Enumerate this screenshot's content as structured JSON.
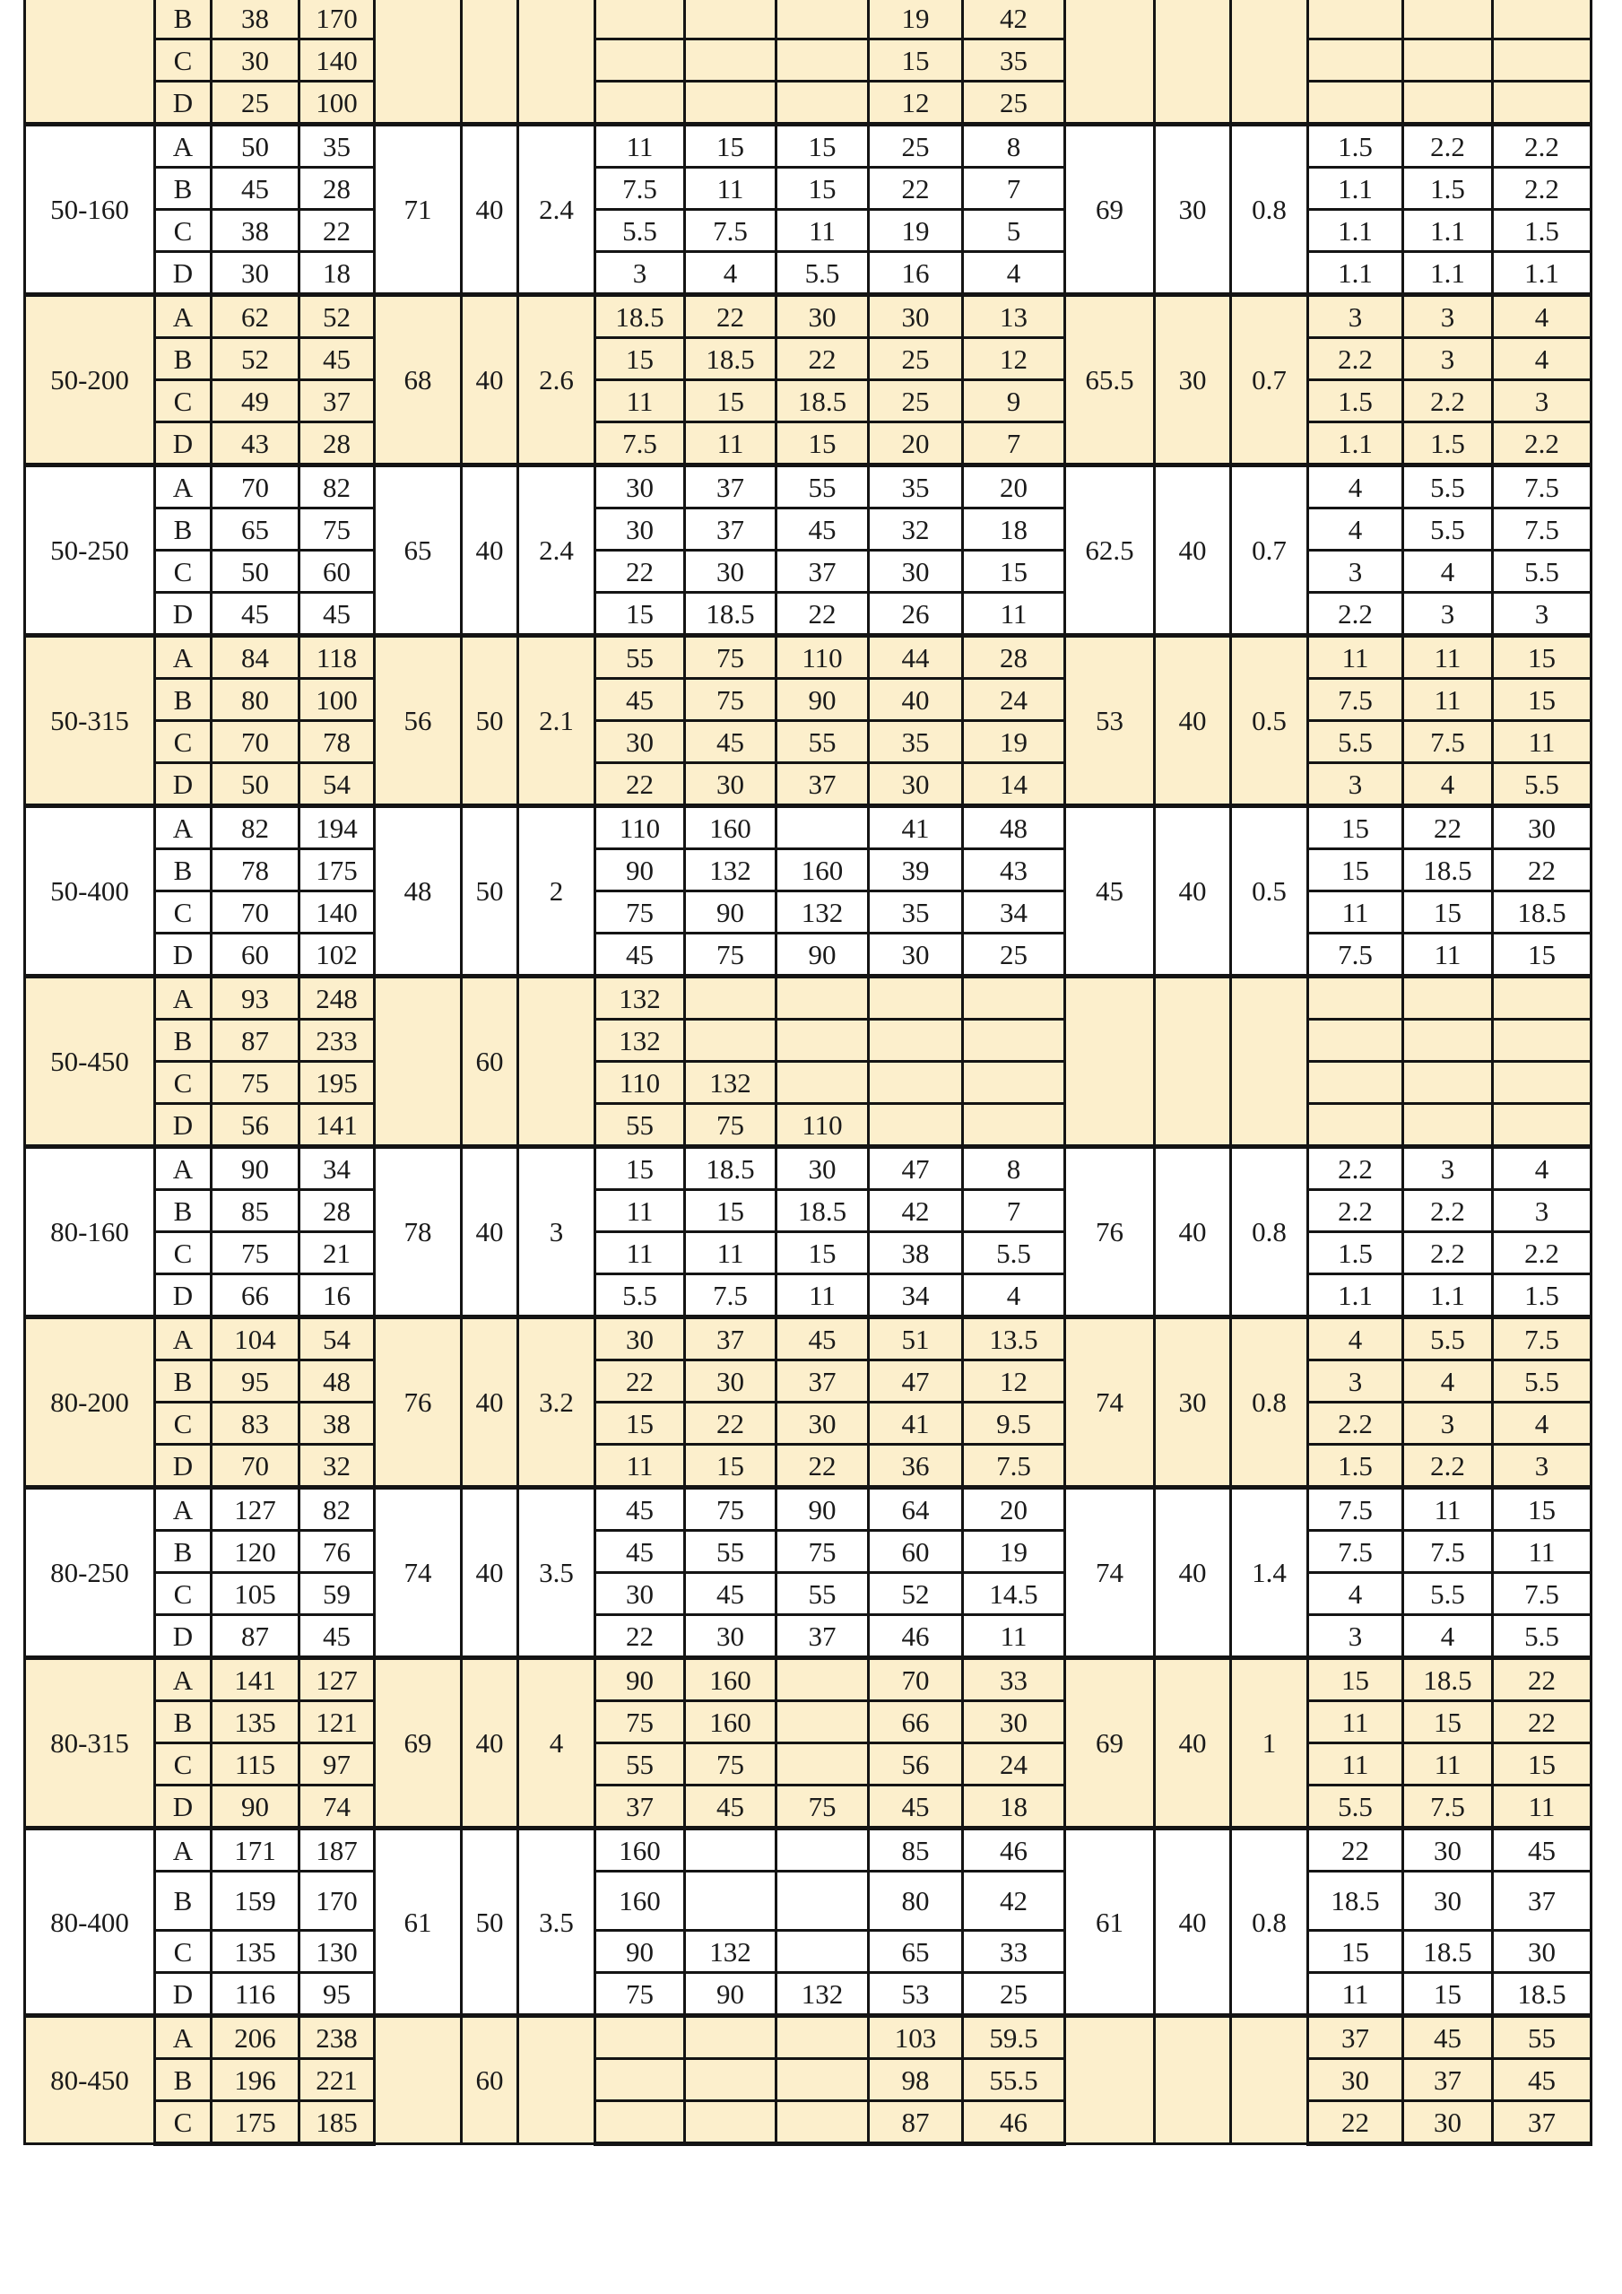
{
  "colors": {
    "shaded_row": "#fcefcc",
    "plain_row": "#ffffff",
    "grid": "#141414"
  },
  "groups": [
    {
      "model": "",
      "shaded": true,
      "merged_left": [
        "",
        "",
        ""
      ],
      "merged_right": [
        "",
        "",
        ""
      ],
      "rows": [
        {
          "variant": "B",
          "v1": "38",
          "v2": "170",
          "mid": [
            "",
            "",
            "",
            "19",
            "42"
          ],
          "right": [
            "",
            "",
            ""
          ]
        },
        {
          "variant": "C",
          "v1": "30",
          "v2": "140",
          "mid": [
            "",
            "",
            "",
            "15",
            "35"
          ],
          "right": [
            "",
            "",
            ""
          ]
        },
        {
          "variant": "D",
          "v1": "25",
          "v2": "100",
          "mid": [
            "",
            "",
            "",
            "12",
            "25"
          ],
          "right": [
            "",
            "",
            ""
          ]
        }
      ]
    },
    {
      "model": "50-160",
      "shaded": false,
      "merged_left": [
        "71",
        "40",
        "2.4"
      ],
      "merged_right": [
        "69",
        "30",
        "0.8"
      ],
      "rows": [
        {
          "variant": "A",
          "v1": "50",
          "v2": "35",
          "mid": [
            "11",
            "15",
            "15",
            "25",
            "8"
          ],
          "right": [
            "1.5",
            "2.2",
            "2.2"
          ]
        },
        {
          "variant": "B",
          "v1": "45",
          "v2": "28",
          "mid": [
            "7.5",
            "11",
            "15",
            "22",
            "7"
          ],
          "right": [
            "1.1",
            "1.5",
            "2.2"
          ]
        },
        {
          "variant": "C",
          "v1": "38",
          "v2": "22",
          "mid": [
            "5.5",
            "7.5",
            "11",
            "19",
            "5"
          ],
          "right": [
            "1.1",
            "1.1",
            "1.5"
          ]
        },
        {
          "variant": "D",
          "v1": "30",
          "v2": "18",
          "mid": [
            "3",
            "4",
            "5.5",
            "16",
            "4"
          ],
          "right": [
            "1.1",
            "1.1",
            "1.1"
          ]
        }
      ]
    },
    {
      "model": "50-200",
      "shaded": true,
      "merged_left": [
        "68",
        "40",
        "2.6"
      ],
      "merged_right": [
        "65.5",
        "30",
        "0.7"
      ],
      "rows": [
        {
          "variant": "A",
          "v1": "62",
          "v2": "52",
          "mid": [
            "18.5",
            "22",
            "30",
            "30",
            "13"
          ],
          "right": [
            "3",
            "3",
            "4"
          ]
        },
        {
          "variant": "B",
          "v1": "52",
          "v2": "45",
          "mid": [
            "15",
            "18.5",
            "22",
            "25",
            "12"
          ],
          "right": [
            "2.2",
            "3",
            "4"
          ]
        },
        {
          "variant": "C",
          "v1": "49",
          "v2": "37",
          "mid": [
            "11",
            "15",
            "18.5",
            "25",
            "9"
          ],
          "right": [
            "1.5",
            "2.2",
            "3"
          ]
        },
        {
          "variant": "D",
          "v1": "43",
          "v2": "28",
          "mid": [
            "7.5",
            "11",
            "15",
            "20",
            "7"
          ],
          "right": [
            "1.1",
            "1.5",
            "2.2"
          ]
        }
      ]
    },
    {
      "model": "50-250",
      "shaded": false,
      "merged_left": [
        "65",
        "40",
        "2.4"
      ],
      "merged_right": [
        "62.5",
        "40",
        "0.7"
      ],
      "rows": [
        {
          "variant": "A",
          "v1": "70",
          "v2": "82",
          "mid": [
            "30",
            "37",
            "55",
            "35",
            "20"
          ],
          "right": [
            "4",
            "5.5",
            "7.5"
          ]
        },
        {
          "variant": "B",
          "v1": "65",
          "v2": "75",
          "mid": [
            "30",
            "37",
            "45",
            "32",
            "18"
          ],
          "right": [
            "4",
            "5.5",
            "7.5"
          ]
        },
        {
          "variant": "C",
          "v1": "50",
          "v2": "60",
          "mid": [
            "22",
            "30",
            "37",
            "30",
            "15"
          ],
          "right": [
            "3",
            "4",
            "5.5"
          ]
        },
        {
          "variant": "D",
          "v1": "45",
          "v2": "45",
          "mid": [
            "15",
            "18.5",
            "22",
            "26",
            "11"
          ],
          "right": [
            "2.2",
            "3",
            "3"
          ]
        }
      ]
    },
    {
      "model": "50-315",
      "shaded": true,
      "merged_left": [
        "56",
        "50",
        "2.1"
      ],
      "merged_right": [
        "53",
        "40",
        "0.5"
      ],
      "rows": [
        {
          "variant": "A",
          "v1": "84",
          "v2": "118",
          "mid": [
            "55",
            "75",
            "110",
            "44",
            "28"
          ],
          "right": [
            "11",
            "11",
            "15"
          ]
        },
        {
          "variant": "B",
          "v1": "80",
          "v2": "100",
          "mid": [
            "45",
            "75",
            "90",
            "40",
            "24"
          ],
          "right": [
            "7.5",
            "11",
            "15"
          ]
        },
        {
          "variant": "C",
          "v1": "70",
          "v2": "78",
          "mid": [
            "30",
            "45",
            "55",
            "35",
            "19"
          ],
          "right": [
            "5.5",
            "7.5",
            "11"
          ]
        },
        {
          "variant": "D",
          "v1": "50",
          "v2": "54",
          "mid": [
            "22",
            "30",
            "37",
            "30",
            "14"
          ],
          "right": [
            "3",
            "4",
            "5.5"
          ]
        }
      ]
    },
    {
      "model": "50-400",
      "shaded": false,
      "merged_left": [
        "48",
        "50",
        "2"
      ],
      "merged_right": [
        "45",
        "40",
        "0.5"
      ],
      "rows": [
        {
          "variant": "A",
          "v1": "82",
          "v2": "194",
          "mid": [
            "110",
            "160",
            "",
            "41",
            "48"
          ],
          "right": [
            "15",
            "22",
            "30"
          ]
        },
        {
          "variant": "B",
          "v1": "78",
          "v2": "175",
          "mid": [
            "90",
            "132",
            "160",
            "39",
            "43"
          ],
          "right": [
            "15",
            "18.5",
            "22"
          ]
        },
        {
          "variant": "C",
          "v1": "70",
          "v2": "140",
          "mid": [
            "75",
            "90",
            "132",
            "35",
            "34"
          ],
          "right": [
            "11",
            "15",
            "18.5"
          ]
        },
        {
          "variant": "D",
          "v1": "60",
          "v2": "102",
          "mid": [
            "45",
            "75",
            "90",
            "30",
            "25"
          ],
          "right": [
            "7.5",
            "11",
            "15"
          ]
        }
      ]
    },
    {
      "model": "50-450",
      "shaded": true,
      "merged_left": [
        "",
        "60",
        ""
      ],
      "merged_right": [
        "",
        "",
        ""
      ],
      "rows": [
        {
          "variant": "A",
          "v1": "93",
          "v2": "248",
          "mid": [
            "132",
            "",
            "",
            "",
            ""
          ],
          "right": [
            "",
            "",
            ""
          ]
        },
        {
          "variant": "B",
          "v1": "87",
          "v2": "233",
          "mid": [
            "132",
            "",
            "",
            "",
            ""
          ],
          "right": [
            "",
            "",
            ""
          ]
        },
        {
          "variant": "C",
          "v1": "75",
          "v2": "195",
          "mid": [
            "110",
            "132",
            "",
            "",
            ""
          ],
          "right": [
            "",
            "",
            ""
          ]
        },
        {
          "variant": "D",
          "v1": "56",
          "v2": "141",
          "mid": [
            "55",
            "75",
            "110",
            "",
            ""
          ],
          "right": [
            "",
            "",
            ""
          ]
        }
      ]
    },
    {
      "model": "80-160",
      "shaded": false,
      "merged_left": [
        "78",
        "40",
        "3"
      ],
      "merged_right": [
        "76",
        "40",
        "0.8"
      ],
      "rows": [
        {
          "variant": "A",
          "v1": "90",
          "v2": "34",
          "mid": [
            "15",
            "18.5",
            "30",
            "47",
            "8"
          ],
          "right": [
            "2.2",
            "3",
            "4"
          ]
        },
        {
          "variant": "B",
          "v1": "85",
          "v2": "28",
          "mid": [
            "11",
            "15",
            "18.5",
            "42",
            "7"
          ],
          "right": [
            "2.2",
            "2.2",
            "3"
          ]
        },
        {
          "variant": "C",
          "v1": "75",
          "v2": "21",
          "mid": [
            "11",
            "11",
            "15",
            "38",
            "5.5"
          ],
          "right": [
            "1.5",
            "2.2",
            "2.2"
          ]
        },
        {
          "variant": "D",
          "v1": "66",
          "v2": "16",
          "mid": [
            "5.5",
            "7.5",
            "11",
            "34",
            "4"
          ],
          "right": [
            "1.1",
            "1.1",
            "1.5"
          ]
        }
      ]
    },
    {
      "model": "80-200",
      "shaded": true,
      "merged_left": [
        "76",
        "40",
        "3.2"
      ],
      "merged_right": [
        "74",
        "30",
        "0.8"
      ],
      "rows": [
        {
          "variant": "A",
          "v1": "104",
          "v2": "54",
          "mid": [
            "30",
            "37",
            "45",
            "51",
            "13.5"
          ],
          "right": [
            "4",
            "5.5",
            "7.5"
          ]
        },
        {
          "variant": "B",
          "v1": "95",
          "v2": "48",
          "mid": [
            "22",
            "30",
            "37",
            "47",
            "12"
          ],
          "right": [
            "3",
            "4",
            "5.5"
          ]
        },
        {
          "variant": "C",
          "v1": "83",
          "v2": "38",
          "mid": [
            "15",
            "22",
            "30",
            "41",
            "9.5"
          ],
          "right": [
            "2.2",
            "3",
            "4"
          ]
        },
        {
          "variant": "D",
          "v1": "70",
          "v2": "32",
          "mid": [
            "11",
            "15",
            "22",
            "36",
            "7.5"
          ],
          "right": [
            "1.5",
            "2.2",
            "3"
          ]
        }
      ]
    },
    {
      "model": "80-250",
      "shaded": false,
      "merged_left": [
        "74",
        "40",
        "3.5"
      ],
      "merged_right": [
        "74",
        "40",
        "1.4"
      ],
      "rows": [
        {
          "variant": "A",
          "v1": "127",
          "v2": "82",
          "mid": [
            "45",
            "75",
            "90",
            "64",
            "20"
          ],
          "right": [
            "7.5",
            "11",
            "15"
          ]
        },
        {
          "variant": "B",
          "v1": "120",
          "v2": "76",
          "mid": [
            "45",
            "55",
            "75",
            "60",
            "19"
          ],
          "right": [
            "7.5",
            "7.5",
            "11"
          ]
        },
        {
          "variant": "C",
          "v1": "105",
          "v2": "59",
          "mid": [
            "30",
            "45",
            "55",
            "52",
            "14.5"
          ],
          "right": [
            "4",
            "5.5",
            "7.5"
          ]
        },
        {
          "variant": "D",
          "v1": "87",
          "v2": "45",
          "mid": [
            "22",
            "30",
            "37",
            "46",
            "11"
          ],
          "right": [
            "3",
            "4",
            "5.5"
          ]
        }
      ]
    },
    {
      "model": "80-315",
      "shaded": true,
      "merged_left": [
        "69",
        "40",
        "4"
      ],
      "merged_right": [
        "69",
        "40",
        "1"
      ],
      "rows": [
        {
          "variant": "A",
          "v1": "141",
          "v2": "127",
          "mid": [
            "90",
            "160",
            "",
            "70",
            "33"
          ],
          "right": [
            "15",
            "18.5",
            "22"
          ]
        },
        {
          "variant": "B",
          "v1": "135",
          "v2": "121",
          "mid": [
            "75",
            "160",
            "",
            "66",
            "30"
          ],
          "right": [
            "11",
            "15",
            "22"
          ]
        },
        {
          "variant": "C",
          "v1": "115",
          "v2": "97",
          "mid": [
            "55",
            "75",
            "",
            "56",
            "24"
          ],
          "right": [
            "11",
            "11",
            "15"
          ]
        },
        {
          "variant": "D",
          "v1": "90",
          "v2": "74",
          "mid": [
            "37",
            "45",
            "75",
            "45",
            "18"
          ],
          "right": [
            "5.5",
            "7.5",
            "11"
          ]
        }
      ]
    },
    {
      "model": "80-400",
      "shaded": false,
      "merged_left": [
        "61",
        "50",
        "3.5"
      ],
      "merged_right": [
        "61",
        "40",
        "0.8"
      ],
      "rows": [
        {
          "variant": "A",
          "v1": "171",
          "v2": "187",
          "mid": [
            "160",
            "",
            "",
            "85",
            "46"
          ],
          "right": [
            "22",
            "30",
            "45"
          ]
        },
        {
          "variant": "B",
          "v1": "159",
          "v2": "170",
          "mid": [
            "160",
            "",
            "",
            "80",
            "42"
          ],
          "right": [
            "18.5",
            "30",
            "37"
          ]
        },
        {
          "variant": "C",
          "v1": "135",
          "v2": "130",
          "mid": [
            "90",
            "132",
            "",
            "65",
            "33"
          ],
          "right": [
            "15",
            "18.5",
            "30"
          ]
        },
        {
          "variant": "D",
          "v1": "116",
          "v2": "95",
          "mid": [
            "75",
            "90",
            "132",
            "53",
            "25"
          ],
          "right": [
            "11",
            "15",
            "18.5"
          ]
        }
      ]
    },
    {
      "model": "80-450",
      "shaded": true,
      "merged_left": [
        "",
        "60",
        ""
      ],
      "merged_right": [
        "",
        "",
        ""
      ],
      "rows": [
        {
          "variant": "A",
          "v1": "206",
          "v2": "238",
          "mid": [
            "",
            "",
            "",
            "103",
            "59.5"
          ],
          "right": [
            "37",
            "45",
            "55"
          ]
        },
        {
          "variant": "B",
          "v1": "196",
          "v2": "221",
          "mid": [
            "",
            "",
            "",
            "98",
            "55.5"
          ],
          "right": [
            "30",
            "37",
            "45"
          ]
        },
        {
          "variant": "C",
          "v1": "175",
          "v2": "185",
          "mid": [
            "",
            "",
            "",
            "87",
            "46"
          ],
          "right": [
            "22",
            "30",
            "37"
          ]
        }
      ]
    }
  ]
}
